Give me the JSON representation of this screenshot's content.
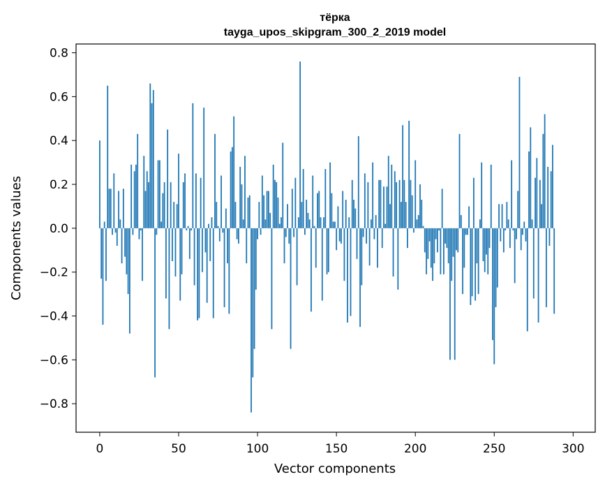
{
  "chart_data": {
    "type": "bar",
    "title_line1": "тёрка",
    "title_line2": "tayga_upos_skipgram_300_2_2019 model",
    "xlabel": "Vector components",
    "ylabel": "Components values",
    "xlim": [
      -15,
      314
    ],
    "ylim": [
      -0.93,
      0.84
    ],
    "xticks": [
      0,
      50,
      100,
      150,
      200,
      250,
      300
    ],
    "xtick_labels": [
      "0",
      "50",
      "100",
      "150",
      "200",
      "250",
      "300"
    ],
    "yticks": [
      -0.8,
      -0.6,
      -0.4,
      -0.2,
      0.0,
      0.2,
      0.4,
      0.6,
      0.8
    ],
    "ytick_labels": [
      "−0.8",
      "−0.6",
      "−0.4",
      "−0.2",
      "0.0",
      "0.2",
      "0.4",
      "0.6",
      "0.8"
    ],
    "bar_color": "#1f77b4",
    "values": [
      0.4,
      -0.23,
      -0.44,
      0.03,
      -0.24,
      0.65,
      0.18,
      0.18,
      -0.03,
      0.25,
      -0.02,
      -0.08,
      0.17,
      0.04,
      -0.16,
      0.18,
      -0.13,
      -0.21,
      -0.3,
      -0.48,
      0.29,
      -0.03,
      0.26,
      0.29,
      0.43,
      -0.05,
      -0.01,
      -0.24,
      0.33,
      0.17,
      0.26,
      0.21,
      0.66,
      0.57,
      0.63,
      -0.68,
      -0.03,
      0.31,
      0.31,
      0.03,
      0.16,
      0.21,
      -0.32,
      0.45,
      -0.46,
      0.21,
      -0.15,
      0.12,
      -0.22,
      0.11,
      0.34,
      -0.33,
      -0.21,
      0.21,
      0.25,
      -0.01,
      0.01,
      -0.14,
      -0.01,
      0.57,
      -0.26,
      0.25,
      -0.42,
      -0.41,
      0.23,
      -0.2,
      0.55,
      -0.11,
      -0.34,
      0.02,
      -0.15,
      0.05,
      -0.41,
      0.43,
      0.12,
      0.01,
      -0.06,
      0.24,
      -0.02,
      -0.36,
      0.09,
      -0.16,
      -0.39,
      0.35,
      0.37,
      0.51,
      0.12,
      -0.05,
      -0.07,
      0.28,
      0.2,
      0.04,
      0.33,
      -0.16,
      0.14,
      0.15,
      -0.84,
      -0.68,
      -0.55,
      -0.28,
      -0.05,
      0.12,
      -0.03,
      0.24,
      0.15,
      0.04,
      0.17,
      0.17,
      0.07,
      -0.46,
      0.29,
      0.22,
      0.21,
      0.14,
      0.02,
      0.05,
      0.39,
      -0.16,
      -0.04,
      0.11,
      -0.07,
      -0.55,
      0.18,
      -0.04,
      0.23,
      -0.26,
      0.05,
      0.76,
      0.12,
      0.27,
      -0.03,
      0.13,
      0.07,
      0.04,
      -0.38,
      0.24,
      0.01,
      -0.18,
      0.16,
      0.17,
      0.05,
      -0.33,
      0.05,
      0.27,
      -0.21,
      -0.2,
      0.3,
      0.16,
      0.03,
      0.03,
      -0.1,
      0.1,
      -0.06,
      -0.07,
      0.17,
      -0.24,
      0.13,
      -0.43,
      0.05,
      -0.4,
      0.22,
      0.13,
      0.09,
      -0.14,
      0.42,
      -0.45,
      -0.26,
      -0.04,
      0.25,
      -0.07,
      0.21,
      -0.17,
      0.04,
      0.3,
      -0.05,
      0.06,
      -0.18,
      0.22,
      0.22,
      -0.09,
      0.19,
      0.02,
      0.19,
      0.33,
      0.11,
      0.29,
      -0.22,
      0.26,
      0.21,
      -0.28,
      0.22,
      0.12,
      0.47,
      0.22,
      0.12,
      -0.09,
      0.49,
      0.22,
      0.15,
      -0.02,
      0.31,
      0.04,
      0.06,
      0.2,
      0.13,
      0.01,
      -0.11,
      -0.21,
      -0.14,
      -0.06,
      -0.18,
      -0.24,
      -0.16,
      -0.05,
      -0.11,
      -0.01,
      -0.21,
      0.18,
      -0.21,
      -0.07,
      -0.09,
      -0.16,
      -0.6,
      -0.24,
      -0.13,
      -0.6,
      -0.1,
      -0.11,
      0.43,
      0.06,
      -0.3,
      -0.18,
      -0.03,
      -0.03,
      0.1,
      -0.35,
      -0.31,
      0.23,
      -0.33,
      -0.16,
      -0.3,
      0.04,
      0.3,
      -0.15,
      -0.2,
      -0.12,
      -0.21,
      -0.09,
      0.29,
      -0.51,
      -0.62,
      -0.36,
      -0.27,
      0.11,
      -0.06,
      0.11,
      -0.11,
      -0.01,
      0.12,
      0.04,
      -0.09,
      0.31,
      -0.01,
      -0.25,
      -0.05,
      0.17,
      0.69,
      -0.1,
      -0.03,
      0.03,
      -0.06,
      -0.47,
      0.35,
      0.46,
      0.04,
      -0.32,
      0.23,
      0.32,
      -0.43,
      0.22,
      0.11,
      0.43,
      0.52,
      -0.36,
      0.28,
      -0.08,
      0.26,
      0.38,
      -0.39
    ]
  }
}
